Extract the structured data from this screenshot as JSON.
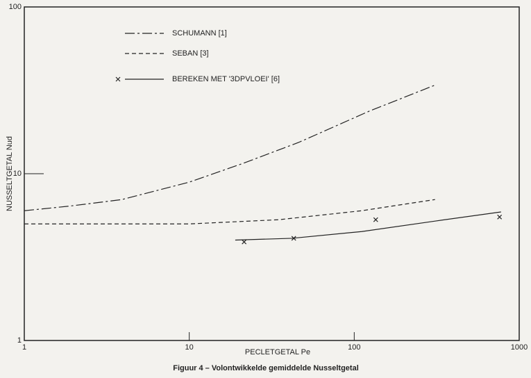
{
  "chart_data": {
    "type": "line",
    "caption": "Figuur 4 – Volontwikkelde gemiddelde Nusseltgetal",
    "xlabel": "PECLETGETAL  Pe",
    "ylabel": "NUSSELTGETAL  Nud",
    "xlog": true,
    "ylog": true,
    "xlim": [
      1,
      1000
    ],
    "ylim": [
      1,
      100
    ],
    "xticks": [
      1,
      10,
      100,
      1000
    ],
    "yticks": [
      1,
      10,
      100
    ],
    "color": "#222222",
    "series": [
      {
        "name": "SCHUMANN [1]",
        "style": "dashdot",
        "x": [
          1,
          1.9,
          3.9,
          10,
          21,
          46,
          123,
          309
        ],
        "values": [
          6.0,
          6.4,
          7.0,
          8.9,
          11.5,
          15.4,
          23.7,
          34
        ]
      },
      {
        "name": "SEBAN [3]",
        "style": "dashed",
        "x": [
          1,
          10,
          35,
          111,
          309
        ],
        "values": [
          5.0,
          5.0,
          5.3,
          6.0,
          7.0
        ]
      },
      {
        "name": "BEREKEN MET '3DPVLOEI' [6]",
        "style": "solid",
        "x": [
          19,
          42,
          111,
          309,
          776
        ],
        "values": [
          4.0,
          4.1,
          4.5,
          5.2,
          5.9
        ],
        "points": {
          "x": [
            21.5,
            43,
            135,
            760
          ],
          "values": [
            3.9,
            4.1,
            5.3,
            5.5
          ]
        }
      }
    ]
  }
}
